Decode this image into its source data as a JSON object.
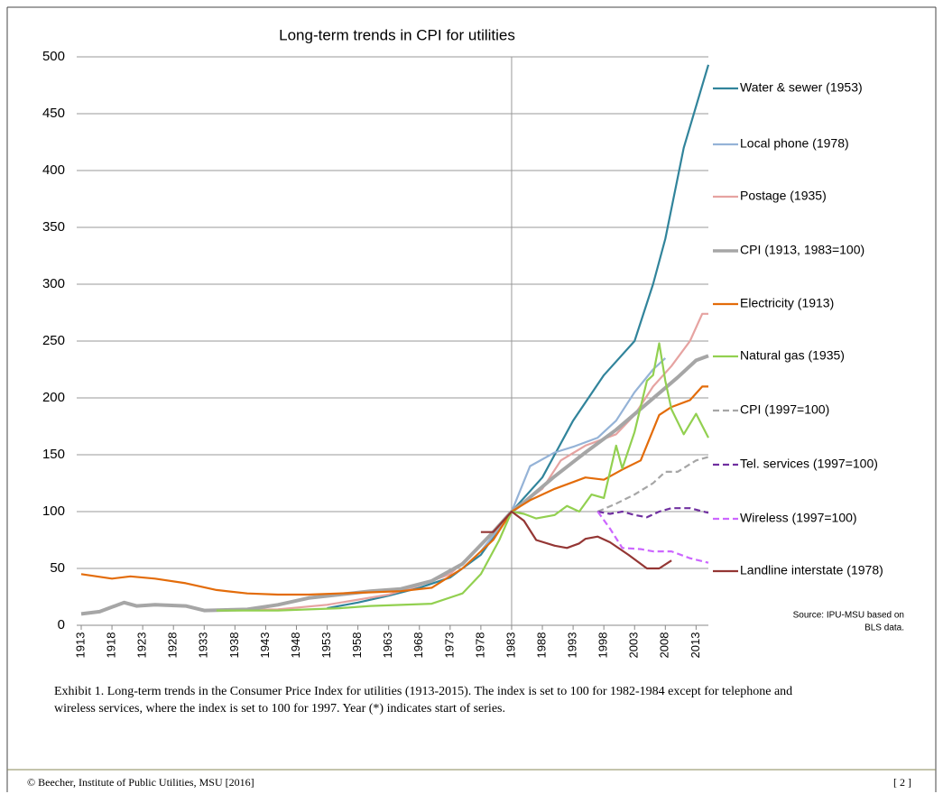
{
  "chart_data": {
    "type": "line",
    "title": "Long-term trends in CPI for utilities",
    "xlim": [
      1913,
      2015
    ],
    "xticks": [
      1913,
      1918,
      1923,
      1928,
      1933,
      1938,
      1943,
      1948,
      1953,
      1958,
      1963,
      1968,
      1973,
      1978,
      1983,
      1988,
      1993,
      1998,
      2003,
      2008,
      2013
    ],
    "ylim": [
      0,
      500
    ],
    "yticks": [
      0,
      50,
      100,
      150,
      200,
      250,
      300,
      350,
      400,
      450,
      500
    ],
    "grid": true,
    "reference_x": 1983,
    "legend": "right",
    "series": [
      {
        "name": "Water & sewer (1953)",
        "color": "#31849b",
        "dash": false,
        "x": [
          1953,
          1958,
          1963,
          1968,
          1973,
          1978,
          1983,
          1988,
          1993,
          1998,
          2003,
          2006,
          2008,
          2011,
          2015
        ],
        "values": [
          15,
          20,
          26,
          33,
          42,
          62,
          100,
          130,
          180,
          220,
          250,
          300,
          340,
          420,
          493
        ]
      },
      {
        "name": "Local phone (1978)",
        "color": "#95b3d7",
        "dash": false,
        "x": [
          1978,
          1983,
          1986,
          1990,
          1993,
          1997,
          2000,
          2003,
          2006,
          2008
        ],
        "values": [
          65,
          100,
          140,
          152,
          157,
          165,
          180,
          205,
          225,
          235
        ]
      },
      {
        "name": "Postage (1935)",
        "color": "#e6a3a1",
        "dash": false,
        "x": [
          1935,
          1945,
          1953,
          1963,
          1968,
          1973,
          1978,
          1983,
          1988,
          1991,
          1995,
          2000,
          2003,
          2006,
          2009,
          2012,
          2014,
          2015
        ],
        "values": [
          13,
          14,
          18,
          27,
          35,
          45,
          70,
          100,
          120,
          145,
          158,
          168,
          185,
          210,
          228,
          250,
          274,
          274
        ]
      },
      {
        "name": "CPI (1913, 1983=100)",
        "color": "#a6a6a6",
        "dash": false,
        "width": 4,
        "x": [
          1913,
          1916,
          1918,
          1920,
          1922,
          1925,
          1930,
          1933,
          1940,
          1945,
          1950,
          1955,
          1960,
          1965,
          1970,
          1975,
          1980,
          1983,
          1985,
          1990,
          1995,
          2000,
          2005,
          2010,
          2013,
          2015
        ],
        "values": [
          10,
          12,
          16,
          20,
          17,
          18,
          17,
          13,
          14,
          18,
          24,
          27,
          30,
          32,
          39,
          54,
          82,
          100,
          108,
          131,
          152,
          172,
          195,
          218,
          233,
          237
        ]
      },
      {
        "name": "Electricity (1913)",
        "color": "#e36c0a",
        "dash": false,
        "x": [
          1913,
          1918,
          1921,
          1925,
          1930,
          1935,
          1940,
          1945,
          1950,
          1955,
          1960,
          1965,
          1970,
          1975,
          1980,
          1983,
          1986,
          1990,
          1995,
          1998,
          2001,
          2004,
          2007,
          2009,
          2012,
          2014,
          2015
        ],
        "values": [
          45,
          41,
          43,
          41,
          37,
          31,
          28,
          27,
          27,
          28,
          29,
          30,
          33,
          50,
          75,
          100,
          110,
          120,
          130,
          128,
          137,
          145,
          185,
          192,
          198,
          210,
          210
        ]
      },
      {
        "name": "Natural gas (1935)",
        "color": "#92d050",
        "dash": false,
        "x": [
          1935,
          1945,
          1955,
          1960,
          1970,
          1975,
          1978,
          1981,
          1983,
          1985,
          1987,
          1990,
          1992,
          1994,
          1996,
          1998,
          2000,
          2001,
          2003,
          2005,
          2006,
          2007,
          2008,
          2009,
          2011,
          2013,
          2015
        ],
        "values": [
          13,
          13,
          15,
          17,
          19,
          28,
          45,
          75,
          100,
          98,
          94,
          97,
          105,
          100,
          115,
          112,
          158,
          138,
          170,
          215,
          220,
          248,
          215,
          190,
          168,
          186,
          165
        ]
      },
      {
        "name": "CPI (1997=100)",
        "color": "#a6a6a6",
        "dash": true,
        "x": [
          1997,
          2000,
          2003,
          2006,
          2008,
          2010,
          2013,
          2015
        ],
        "values": [
          100,
          107,
          115,
          125,
          135,
          135,
          145,
          148
        ]
      },
      {
        "name": "Tel. services (1997=100)",
        "color": "#7030a0",
        "dash": true,
        "x": [
          1997,
          1999,
          2001,
          2003,
          2005,
          2007,
          2009,
          2012,
          2015
        ],
        "values": [
          100,
          98,
          100,
          97,
          95,
          100,
          103,
          103,
          99
        ]
      },
      {
        "name": "Wireless (1997=100)",
        "color": "#cc66ff",
        "dash": true,
        "x": [
          1997,
          1999,
          2001,
          2004,
          2006,
          2009,
          2012,
          2015
        ],
        "values": [
          100,
          85,
          68,
          67,
          65,
          65,
          59,
          55
        ]
      },
      {
        "name": "Landline interstate (1978)",
        "color": "#943634",
        "dash": false,
        "x": [
          1978,
          1980,
          1983,
          1985,
          1987,
          1990,
          1992,
          1994,
          1995,
          1997,
          1999,
          2002,
          2005,
          2007,
          2009
        ],
        "values": [
          82,
          82,
          100,
          92,
          75,
          70,
          68,
          72,
          76,
          78,
          73,
          62,
          50,
          50,
          57
        ]
      }
    ],
    "source": [
      "Source: IPU-MSU  based on",
      "BLS data."
    ],
    "caption": [
      "Exhibit 1.  Long-term trends in the Consumer Price Index for utilities (1913-2015).  The index is set to 100 for 1982-1984 except for telephone and",
      "wireless services, where the index is set to 100 for 1997.  Year (*) indicates start of series."
    ]
  },
  "footer": {
    "left": "© Beecher, Institute of Public Utilities, MSU [2016]",
    "right": "[ 2 ]"
  }
}
